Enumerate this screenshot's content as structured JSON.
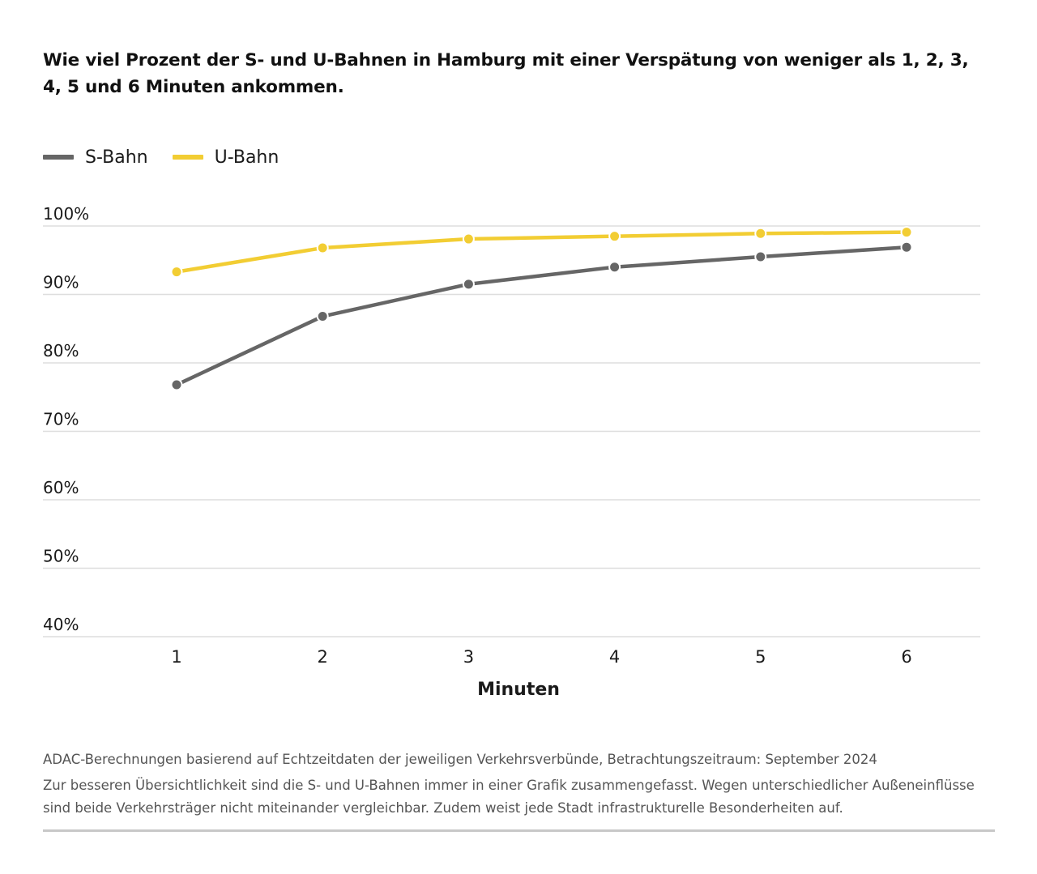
{
  "chart_data": {
    "type": "line",
    "title": "Wie viel Prozent der S- und U-Bahnen in Hamburg mit einer Verspätung von weniger als 1, 2, 3, 4, 5 und 6 Minuten ankommen.",
    "xlabel": "Minuten",
    "ylabel": "",
    "categories": [
      "1",
      "2",
      "3",
      "4",
      "5",
      "6"
    ],
    "y_ticks": [
      40,
      50,
      60,
      70,
      80,
      90,
      100
    ],
    "y_tick_labels": [
      "40%",
      "50%",
      "60%",
      "70%",
      "80%",
      "90%",
      "100%"
    ],
    "ylim": [
      40,
      100
    ],
    "grid": true,
    "legend_position": "top-left",
    "series": [
      {
        "name": "S-Bahn",
        "color": "#666666",
        "values": [
          76.8,
          86.8,
          91.5,
          94.0,
          95.5,
          96.9
        ]
      },
      {
        "name": "U-Bahn",
        "color": "#f2cd33",
        "values": [
          93.3,
          96.8,
          98.1,
          98.5,
          98.9,
          99.1
        ]
      }
    ]
  },
  "footer": {
    "source": "ADAC-Berechnungen basierend auf Echtzeitdaten der jeweiligen Verkehrsverbünde, Betrachtungszeitraum: September 2024",
    "note": "Zur besseren Übersichtlichkeit sind die S- und U-Bahnen immer in einer Grafik zusammengefasst. Wegen unterschiedlicher Außeneinflüsse sind beide Verkehrsträger nicht miteinander vergleichbar. Zudem weist jede Stadt infrastrukturelle Besonderheiten auf."
  }
}
